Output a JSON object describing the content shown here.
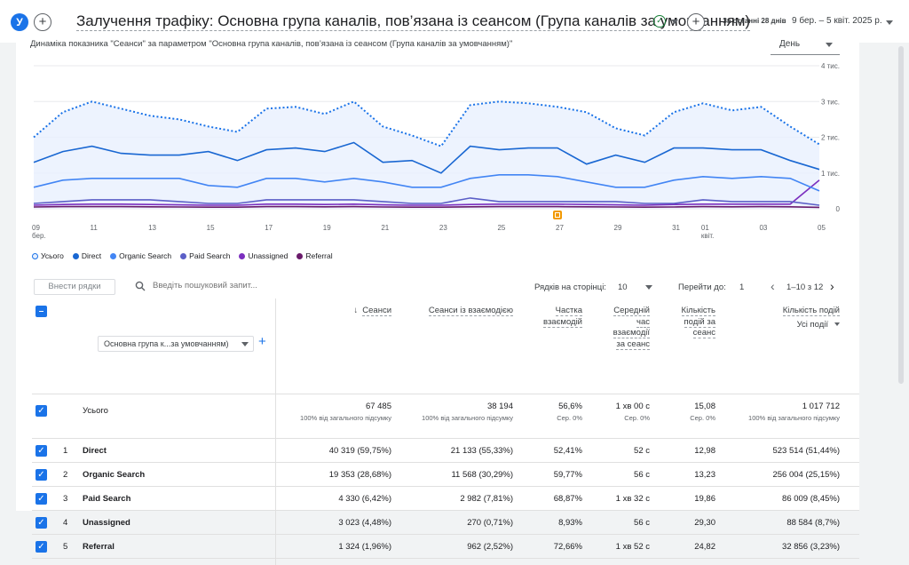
{
  "header": {
    "avatar_letter": "У",
    "title": "Залучення трафіку: Основна група каналів, пов’язана із сеансом (Група каналів за умовчанням)",
    "date_label": "За останні 28 днів",
    "date_range": "9 бер. – 5 квіт. 2025 р."
  },
  "chart": {
    "title": "Динаміка показника \"Сеанси\" за параметром \"Основна група каналів, пов’язана із сеансом (Група каналів за умовчанням)\"",
    "period": "День"
  },
  "chart_data": {
    "type": "line",
    "x": [
      "09 бер.",
      "10",
      "11",
      "12",
      "13",
      "14",
      "15",
      "16",
      "17",
      "18",
      "19",
      "20",
      "21",
      "22",
      "23",
      "24",
      "25",
      "26",
      "27",
      "28",
      "29",
      "30",
      "31",
      "01 квіт.",
      "02",
      "03",
      "04",
      "05"
    ],
    "x_tick_labels": [
      "09",
      "бер.",
      "11",
      "13",
      "15",
      "17",
      "19",
      "21",
      "23",
      "25",
      "27",
      "29",
      "31",
      "01",
      "квіт.",
      "03",
      "05"
    ],
    "y_tick_labels": [
      "4 тис.",
      "3 тис.",
      "2 тис.",
      "1 тис.",
      "0"
    ],
    "ylim": [
      0,
      4000
    ],
    "series": [
      {
        "name": "Усього",
        "color": "#1a73e8",
        "style": "dotted",
        "values": [
          2000,
          2700,
          3000,
          2800,
          2600,
          2500,
          2300,
          2150,
          2800,
          2850,
          2650,
          3000,
          2300,
          2050,
          1750,
          2900,
          3000,
          2950,
          2850,
          2700,
          2250,
          2050,
          2700,
          2950,
          2750,
          2850,
          2300,
          1800
        ]
      },
      {
        "name": "Direct",
        "color": "#1967d2",
        "values": [
          1300,
          1600,
          1750,
          1550,
          1500,
          1500,
          1600,
          1350,
          1650,
          1700,
          1600,
          1850,
          1300,
          1350,
          1000,
          1750,
          1650,
          1700,
          1700,
          1250,
          1500,
          1300,
          1700,
          1700,
          1650,
          1650,
          1350,
          1100
        ]
      },
      {
        "name": "Organic Search",
        "color": "#4285f4",
        "values": [
          600,
          800,
          850,
          850,
          850,
          850,
          650,
          600,
          850,
          850,
          750,
          850,
          750,
          600,
          600,
          850,
          950,
          950,
          900,
          750,
          600,
          600,
          800,
          900,
          850,
          900,
          850,
          500
        ]
      },
      {
        "name": "Paid Search",
        "color": "#5b5fc7",
        "values": [
          150,
          200,
          250,
          250,
          250,
          200,
          150,
          150,
          250,
          250,
          250,
          250,
          200,
          150,
          150,
          300,
          200,
          200,
          200,
          200,
          200,
          150,
          150,
          250,
          200,
          200,
          200,
          100
        ]
      },
      {
        "name": "Unassigned",
        "color": "#7b2fbf",
        "values": [
          100,
          120,
          130,
          130,
          120,
          110,
          100,
          100,
          130,
          130,
          120,
          130,
          110,
          100,
          100,
          120,
          130,
          130,
          130,
          120,
          110,
          100,
          120,
          130,
          130,
          130,
          130,
          800
        ]
      },
      {
        "name": "Referral",
        "color": "#6a1b6b",
        "values": [
          50,
          60,
          60,
          60,
          55,
          50,
          45,
          45,
          60,
          60,
          55,
          60,
          50,
          45,
          45,
          55,
          60,
          60,
          60,
          55,
          50,
          45,
          50,
          60,
          55,
          60,
          55,
          40
        ]
      }
    ]
  },
  "toolbar": {
    "insert_rows": "Внести рядки",
    "search_placeholder": "Введіть пошуковий запит...",
    "rows_per_page_label": "Рядків на сторінці:",
    "rows_per_page": "10",
    "go_to_label": "Перейти до:",
    "go_to_value": "1",
    "pagination": "1–10 з 12"
  },
  "table": {
    "dimension": "Основна група к...за умовчанням)",
    "columns": [
      {
        "label": "Сеанси",
        "sort": "↓",
        "total": "67 485",
        "total_sub": "100% від загального підсумку"
      },
      {
        "label": "Сеанси із взаємодією",
        "total": "38 194",
        "total_sub": "100% від загального підсумку"
      },
      {
        "label": "Частка взаємодій",
        "total": "56,6%",
        "total_sub": "Сер. 0%"
      },
      {
        "label": "Середній час взаємодії за сеанс",
        "total": "1 хв 00 с",
        "total_sub": "Сер. 0%"
      },
      {
        "label": "Кількість подій за сеанс",
        "total": "15,08",
        "total_sub": "Сер. 0%"
      },
      {
        "label": "Кількість подій",
        "sublabel": "Усі події",
        "total": "1 017 712",
        "total_sub": "100% від загального підсумку"
      }
    ],
    "total_label": "Усього",
    "rows": [
      {
        "n": "1",
        "name": "Direct",
        "v": [
          "40 319 (59,75%)",
          "21 133 (55,33%)",
          "52,41%",
          "52 с",
          "12,98",
          "523 514 (51,44%)"
        ]
      },
      {
        "n": "2",
        "name": "Organic Search",
        "v": [
          "19 353 (28,68%)",
          "11 568 (30,29%)",
          "59,77%",
          "56 с",
          "13,23",
          "256 004 (25,15%)"
        ]
      },
      {
        "n": "3",
        "name": "Paid Search",
        "v": [
          "4 330 (6,42%)",
          "2 982 (7,81%)",
          "68,87%",
          "1 хв 32 с",
          "19,86",
          "86 009 (8,45%)"
        ]
      },
      {
        "n": "4",
        "name": "Unassigned",
        "v": [
          "3 023 (4,48%)",
          "270 (0,71%)",
          "8,93%",
          "56 с",
          "29,30",
          "88 584 (8,7%)"
        ]
      },
      {
        "n": "5",
        "name": "Referral",
        "v": [
          "1 324 (1,96%)",
          "962 (2,52%)",
          "72,66%",
          "1 хв 52 с",
          "24,82",
          "32 856 (3,23%)"
        ]
      }
    ]
  }
}
